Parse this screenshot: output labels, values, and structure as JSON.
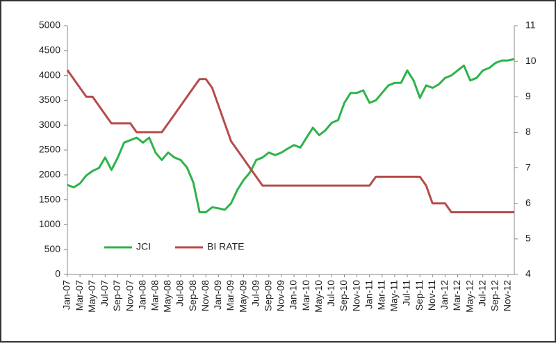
{
  "chart_data": {
    "type": "line",
    "categories": [
      "Jan-07",
      null,
      "Mar-07",
      null,
      "May-07",
      null,
      "Jul-07",
      null,
      "Sep-07",
      null,
      "Nov-07",
      null,
      "Jan-08",
      null,
      "Mar-08",
      null,
      "May-08",
      null,
      "Jul-08",
      null,
      "Sep-08",
      null,
      "Nov-08",
      null,
      "Jan-09",
      null,
      "Mar-09",
      null,
      "May-09",
      null,
      "Jul-09",
      null,
      "Sep-09",
      null,
      "Nov-09",
      null,
      "Jan-10",
      null,
      "Mar-10",
      null,
      "May-10",
      null,
      "Jul-10",
      null,
      "Sep-10",
      null,
      "Nov-10",
      null,
      "Jan-11",
      null,
      "Mar-11",
      null,
      "May-11",
      null,
      "Jul-11",
      null,
      "Sep-11",
      null,
      "Nov-11",
      null,
      "Jan-12",
      null,
      "Mar-12",
      null,
      "May-12",
      null,
      "Jul-12",
      null,
      "Sep-12",
      null,
      "Nov-12",
      null
    ],
    "series": [
      {
        "name": "JCI",
        "color": "#2db34a",
        "values": [
          1800,
          1750,
          1830,
          1990,
          2080,
          2140,
          2350,
          2100,
          2350,
          2650,
          2700,
          2750,
          2650,
          2750,
          2450,
          2300,
          2450,
          2350,
          2300,
          2150,
          1850,
          1250,
          1250,
          1350,
          1330,
          1300,
          1430,
          1700,
          1900,
          2050,
          2300,
          2350,
          2450,
          2400,
          2450,
          2530,
          2600,
          2550,
          2750,
          2950,
          2800,
          2900,
          3050,
          3100,
          3450,
          3650,
          3650,
          3700,
          3450,
          3500,
          3650,
          3800,
          3850,
          3850,
          4100,
          3900,
          3550,
          3800,
          3750,
          3820,
          3950,
          4000,
          4100,
          4200,
          3900,
          3950,
          4100,
          4150,
          4250,
          4300,
          4300,
          4330
        ]
      },
      {
        "name": "BI RATE",
        "color": "#b84a4a",
        "axis": "y2",
        "values": [
          9.75,
          9.5,
          9.25,
          9.0,
          9.0,
          8.75,
          8.5,
          8.25,
          8.25,
          8.25,
          8.25,
          8.0,
          8.0,
          8.0,
          8.0,
          8.0,
          8.25,
          8.5,
          8.75,
          9.0,
          9.25,
          9.5,
          9.5,
          9.25,
          8.75,
          8.25,
          7.75,
          7.5,
          7.25,
          7.0,
          6.75,
          6.5,
          6.5,
          6.5,
          6.5,
          6.5,
          6.5,
          6.5,
          6.5,
          6.5,
          6.5,
          6.5,
          6.5,
          6.5,
          6.5,
          6.5,
          6.5,
          6.5,
          6.5,
          6.75,
          6.75,
          6.75,
          6.75,
          6.75,
          6.75,
          6.75,
          6.75,
          6.5,
          6.0,
          6.0,
          6.0,
          5.75,
          5.75,
          5.75,
          5.75,
          5.75,
          5.75,
          5.75,
          5.75,
          5.75,
          5.75,
          5.75
        ]
      }
    ],
    "ylim": [
      0,
      5000
    ],
    "yticks": [
      0,
      500,
      1000,
      1500,
      2000,
      2500,
      3000,
      3500,
      4000,
      4500,
      5000
    ],
    "y2lim": [
      4,
      11
    ],
    "y2ticks": [
      4,
      5,
      6,
      7,
      8,
      9,
      10,
      11
    ],
    "legend": "lower left"
  }
}
